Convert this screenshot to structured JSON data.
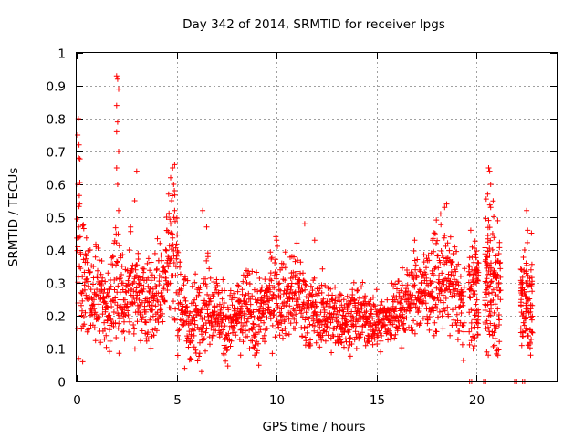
{
  "chart_data": {
    "type": "scatter",
    "title": "Day 342 of 2014, SRMTID for receiver lpgs",
    "xlabel": "GPS time / hours",
    "ylabel": "SRMTID / TECUs",
    "xlim": [
      0,
      24
    ],
    "ylim": [
      0,
      1
    ],
    "xticks": [
      0,
      5,
      10,
      15,
      20
    ],
    "xtick_labels": [
      "0",
      "5",
      "10",
      "15",
      "20"
    ],
    "yticks": [
      0,
      0.1,
      0.2,
      0.3,
      0.4,
      0.5,
      0.6,
      0.7,
      0.8,
      0.9,
      1
    ],
    "ytick_labels": [
      "0",
      "0.1",
      "0.2",
      "0.3",
      "0.4",
      "0.5",
      "0.6",
      "0.7",
      "0.8",
      "0.9",
      "1"
    ],
    "grid": true,
    "marker": "+",
    "series": [
      {
        "name": "SRMTID",
        "color": "#ff0000",
        "envelope": [
          [
            0.0,
            0.3,
            0.1
          ],
          [
            0.1,
            0.45,
            0.18
          ],
          [
            0.3,
            0.3,
            0.1
          ],
          [
            0.7,
            0.25,
            0.07
          ],
          [
            1.2,
            0.28,
            0.07
          ],
          [
            1.6,
            0.22,
            0.06
          ],
          [
            2.0,
            0.3,
            0.1
          ],
          [
            2.3,
            0.26,
            0.08
          ],
          [
            2.8,
            0.28,
            0.08
          ],
          [
            3.3,
            0.25,
            0.06
          ],
          [
            3.8,
            0.25,
            0.07
          ],
          [
            4.3,
            0.3,
            0.08
          ],
          [
            4.8,
            0.4,
            0.12
          ],
          [
            5.2,
            0.25,
            0.08
          ],
          [
            5.6,
            0.17,
            0.06
          ],
          [
            6.0,
            0.2,
            0.06
          ],
          [
            6.5,
            0.25,
            0.07
          ],
          [
            7.0,
            0.22,
            0.06
          ],
          [
            7.5,
            0.16,
            0.05
          ],
          [
            8.0,
            0.2,
            0.05
          ],
          [
            8.5,
            0.22,
            0.06
          ],
          [
            9.0,
            0.18,
            0.06
          ],
          [
            9.5,
            0.24,
            0.06
          ],
          [
            10.0,
            0.28,
            0.07
          ],
          [
            10.5,
            0.25,
            0.06
          ],
          [
            11.0,
            0.27,
            0.07
          ],
          [
            11.5,
            0.22,
            0.06
          ],
          [
            12.0,
            0.2,
            0.05
          ],
          [
            12.5,
            0.21,
            0.05
          ],
          [
            13.0,
            0.19,
            0.05
          ],
          [
            13.5,
            0.19,
            0.04
          ],
          [
            14.0,
            0.2,
            0.05
          ],
          [
            14.5,
            0.19,
            0.04
          ],
          [
            15.0,
            0.18,
            0.04
          ],
          [
            15.5,
            0.19,
            0.04
          ],
          [
            16.0,
            0.21,
            0.05
          ],
          [
            16.5,
            0.24,
            0.05
          ],
          [
            17.0,
            0.27,
            0.06
          ],
          [
            17.5,
            0.28,
            0.06
          ],
          [
            18.0,
            0.3,
            0.07
          ],
          [
            18.5,
            0.3,
            0.07
          ],
          [
            19.0,
            0.27,
            0.07
          ],
          [
            19.4,
            0.2,
            0.05
          ]
        ],
        "clusters": [
          [
            19.6,
            20.1,
            0.28,
            0.08
          ],
          [
            20.4,
            21.2,
            0.28,
            0.1
          ],
          [
            22.2,
            22.8,
            0.25,
            0.08
          ]
        ],
        "spikes": [
          [
            0.05,
            0.75
          ],
          [
            0.08,
            0.8
          ],
          [
            0.12,
            0.72
          ],
          [
            0.1,
            0.68
          ],
          [
            0.06,
            0.6
          ],
          [
            0.15,
            0.54
          ],
          [
            0.1,
            0.47
          ],
          [
            0.3,
            0.06
          ],
          [
            2.0,
            0.93
          ],
          [
            2.05,
            0.92
          ],
          [
            2.1,
            0.89
          ],
          [
            2.0,
            0.84
          ],
          [
            2.05,
            0.79
          ],
          [
            2.0,
            0.76
          ],
          [
            2.1,
            0.7
          ],
          [
            2.0,
            0.65
          ],
          [
            2.05,
            0.6
          ],
          [
            2.1,
            0.52
          ],
          [
            3.0,
            0.64
          ],
          [
            2.9,
            0.55
          ],
          [
            2.7,
            0.47
          ],
          [
            4.8,
            0.65
          ],
          [
            4.9,
            0.66
          ],
          [
            4.7,
            0.62
          ],
          [
            4.85,
            0.6
          ],
          [
            4.6,
            0.57
          ],
          [
            4.75,
            0.55
          ],
          [
            4.9,
            0.52
          ],
          [
            4.5,
            0.5
          ],
          [
            5.4,
            0.04
          ],
          [
            6.3,
            0.52
          ],
          [
            6.5,
            0.47
          ],
          [
            8.2,
            0.08
          ],
          [
            8.9,
            0.08
          ],
          [
            11.4,
            0.48
          ],
          [
            11.9,
            0.43
          ],
          [
            10.0,
            0.43
          ],
          [
            14.0,
            0.1
          ],
          [
            15.2,
            0.09
          ],
          [
            16.9,
            0.43
          ],
          [
            17.8,
            0.43
          ],
          [
            18.2,
            0.51
          ],
          [
            18.4,
            0.53
          ],
          [
            18.5,
            0.54
          ],
          [
            18.7,
            0.44
          ],
          [
            20.6,
            0.65
          ],
          [
            20.65,
            0.64
          ],
          [
            20.7,
            0.6
          ],
          [
            20.55,
            0.57
          ],
          [
            20.7,
            0.53
          ],
          [
            20.6,
            0.49
          ],
          [
            20.8,
            0.45
          ],
          [
            22.5,
            0.52
          ],
          [
            22.55,
            0.46
          ],
          [
            22.4,
            0.4
          ],
          [
            20.9,
            0.11
          ],
          [
            20.8,
            0.14
          ],
          [
            22.6,
            0.11
          ]
        ],
        "floor": [
          19.65,
          19.75,
          20.35,
          20.45,
          21.9,
          22.0,
          22.3,
          22.4
        ]
      }
    ]
  }
}
